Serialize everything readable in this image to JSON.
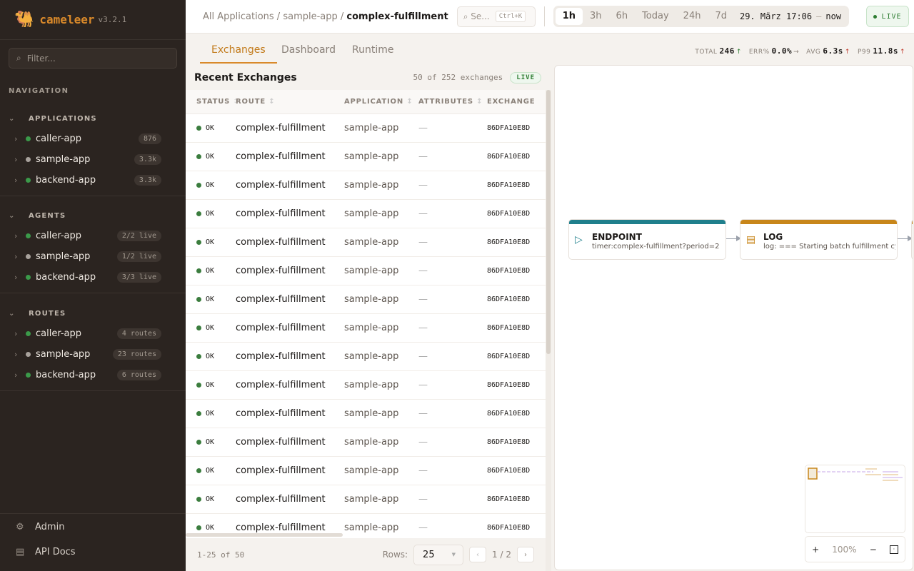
{
  "app": {
    "name": "cameleer",
    "version": "v3.2.1"
  },
  "sidebar": {
    "filter_placeholder": "Filter...",
    "nav_label": "NAVIGATION",
    "sections": [
      {
        "title": "APPLICATIONS",
        "items": [
          {
            "label": "caller-app",
            "badge": "876",
            "status": "green"
          },
          {
            "label": "sample-app",
            "badge": "3.3k",
            "status": "grey"
          },
          {
            "label": "backend-app",
            "badge": "3.3k",
            "status": "green"
          }
        ]
      },
      {
        "title": "AGENTS",
        "items": [
          {
            "label": "caller-app",
            "badge": "2/2 live",
            "status": "green"
          },
          {
            "label": "sample-app",
            "badge": "1/2 live",
            "status": "grey"
          },
          {
            "label": "backend-app",
            "badge": "3/3 live",
            "status": "green"
          }
        ]
      },
      {
        "title": "ROUTES",
        "items": [
          {
            "label": "caller-app",
            "badge": "4 routes",
            "status": "green"
          },
          {
            "label": "sample-app",
            "badge": "23 routes",
            "status": "grey"
          },
          {
            "label": "backend-app",
            "badge": "6 routes",
            "status": "green"
          }
        ]
      }
    ],
    "footer": [
      {
        "label": "Admin",
        "icon": "gear-icon"
      },
      {
        "label": "API Docs",
        "icon": "document-icon"
      }
    ]
  },
  "topbar": {
    "breadcrumb": [
      "All Applications",
      "sample-app",
      "complex-fulfillment"
    ],
    "search_placeholder": "Se...",
    "search_shortcut": "Ctrl+K",
    "ranges": [
      "1h",
      "3h",
      "6h",
      "Today",
      "24h",
      "7d"
    ],
    "selected_range": "1h",
    "date_from": "29. März 17:06",
    "date_sep": "—",
    "date_to": "now",
    "live_label": "LIVE"
  },
  "tabs": [
    {
      "label": "Exchanges",
      "active": true
    },
    {
      "label": "Dashboard"
    },
    {
      "label": "Runtime"
    }
  ],
  "stats": [
    {
      "label": "TOTAL",
      "value": "246",
      "trend": "↑",
      "tone": "up"
    },
    {
      "label": "ERR%",
      "value": "0.0%",
      "trend": "→",
      "tone": "flat"
    },
    {
      "label": "AVG",
      "value": "6.3s",
      "trend": "↑",
      "tone": "red"
    },
    {
      "label": "P99",
      "value": "11.8s",
      "trend": "↑",
      "tone": "red"
    }
  ],
  "exchanges": {
    "title": "Recent Exchanges",
    "count": "50 of 252 exchanges",
    "live": "LIVE",
    "columns": [
      "STATUS",
      "ROUTE",
      "APPLICATION",
      "ATTRIBUTES",
      "EXCHANGE"
    ],
    "rows": [
      {
        "status": "OK",
        "route": "complex-fulfillment",
        "app": "sample-app",
        "attrs": "—",
        "id": "86DFA10E8D"
      },
      {
        "status": "OK",
        "route": "complex-fulfillment",
        "app": "sample-app",
        "attrs": "—",
        "id": "86DFA10E8D"
      },
      {
        "status": "OK",
        "route": "complex-fulfillment",
        "app": "sample-app",
        "attrs": "—",
        "id": "86DFA10E8D"
      },
      {
        "status": "OK",
        "route": "complex-fulfillment",
        "app": "sample-app",
        "attrs": "—",
        "id": "86DFA10E8D"
      },
      {
        "status": "OK",
        "route": "complex-fulfillment",
        "app": "sample-app",
        "attrs": "—",
        "id": "86DFA10E8D"
      },
      {
        "status": "OK",
        "route": "complex-fulfillment",
        "app": "sample-app",
        "attrs": "—",
        "id": "86DFA10E8D"
      },
      {
        "status": "OK",
        "route": "complex-fulfillment",
        "app": "sample-app",
        "attrs": "—",
        "id": "86DFA10E8D"
      },
      {
        "status": "OK",
        "route": "complex-fulfillment",
        "app": "sample-app",
        "attrs": "—",
        "id": "86DFA10E8D"
      },
      {
        "status": "OK",
        "route": "complex-fulfillment",
        "app": "sample-app",
        "attrs": "—",
        "id": "86DFA10E8D"
      },
      {
        "status": "OK",
        "route": "complex-fulfillment",
        "app": "sample-app",
        "attrs": "—",
        "id": "86DFA10E8D"
      },
      {
        "status": "OK",
        "route": "complex-fulfillment",
        "app": "sample-app",
        "attrs": "—",
        "id": "86DFA10E8D"
      },
      {
        "status": "OK",
        "route": "complex-fulfillment",
        "app": "sample-app",
        "attrs": "—",
        "id": "86DFA10E8D"
      },
      {
        "status": "OK",
        "route": "complex-fulfillment",
        "app": "sample-app",
        "attrs": "—",
        "id": "86DFA10E8D"
      },
      {
        "status": "OK",
        "route": "complex-fulfillment",
        "app": "sample-app",
        "attrs": "—",
        "id": "86DFA10E8D"
      },
      {
        "status": "OK",
        "route": "complex-fulfillment",
        "app": "sample-app",
        "attrs": "—",
        "id": "86DFA10E8D"
      }
    ],
    "range": "1-25 of 50",
    "rows_label": "Rows:",
    "rows_value": "25",
    "page": "1 / 2"
  },
  "diagram": {
    "nodes": [
      {
        "type": "ENDPOINT",
        "detail": "timer:complex-fulfillment?period=2",
        "color": "#1f7f8c"
      },
      {
        "type": "LOG",
        "detail": "log: === Starting batch fulfillment cy",
        "color": "#c8861a"
      }
    ],
    "zoom": "100%"
  },
  "colors": {
    "accent": "#d9892a",
    "ok": "#3b7d3e",
    "sidebar": "#2b2420"
  }
}
